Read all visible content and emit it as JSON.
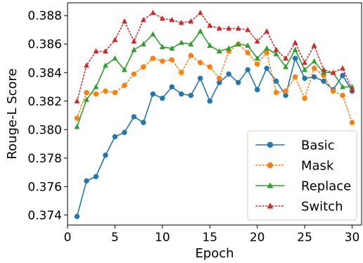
{
  "chart_data": {
    "type": "line",
    "title": "",
    "xlabel": "Epoch",
    "ylabel": "Rouge-L Score",
    "xlim": [
      0,
      31
    ],
    "ylim": [
      0.3733,
      0.3889
    ],
    "xticks": [
      0,
      5,
      10,
      15,
      20,
      25,
      30
    ],
    "yticks": [
      0.374,
      0.376,
      0.378,
      0.38,
      0.382,
      0.384,
      0.386,
      0.388
    ],
    "ytick_labels": [
      "0.374",
      "0.376",
      "0.378",
      "0.380",
      "0.382",
      "0.384",
      "0.386",
      "0.388"
    ],
    "grid": false,
    "legend_position": "lower-right",
    "x": [
      1,
      2,
      3,
      4,
      5,
      6,
      7,
      8,
      9,
      10,
      11,
      12,
      13,
      14,
      15,
      16,
      17,
      18,
      19,
      20,
      21,
      22,
      23,
      24,
      25,
      26,
      27,
      28,
      29,
      30
    ],
    "series": [
      {
        "name": "Basic",
        "color": "#1f77b4",
        "line_style": "solid",
        "marker": "circle",
        "values": [
          0.3739,
          0.3764,
          0.3767,
          0.3782,
          0.3795,
          0.3798,
          0.3809,
          0.3805,
          0.3825,
          0.3822,
          0.383,
          0.3825,
          0.3824,
          0.3836,
          0.382,
          0.3833,
          0.3839,
          0.3833,
          0.3842,
          0.3828,
          0.3843,
          0.3834,
          0.3824,
          0.385,
          0.3836,
          0.3837,
          0.3834,
          0.3828,
          0.3838,
          0.3827
        ]
      },
      {
        "name": "Mask",
        "color": "#ff7f0e",
        "line_style": "dotted",
        "marker": "circle",
        "values": [
          0.3808,
          0.3826,
          0.3825,
          0.3827,
          0.3826,
          0.3831,
          0.3839,
          0.3844,
          0.385,
          0.3848,
          0.3849,
          0.384,
          0.3852,
          0.3847,
          0.3844,
          0.3836,
          0.3855,
          0.386,
          0.3854,
          0.3846,
          0.3854,
          0.3826,
          0.3827,
          0.3837,
          0.3822,
          0.3843,
          0.3838,
          0.3827,
          0.3824,
          0.3805
        ]
      },
      {
        "name": "Replace",
        "color": "#2ca02c",
        "line_style": "solid",
        "marker": "triangle",
        "values": [
          0.3802,
          0.3821,
          0.383,
          0.3845,
          0.385,
          0.3842,
          0.3856,
          0.386,
          0.3867,
          0.3858,
          0.3857,
          0.3861,
          0.386,
          0.3869,
          0.3859,
          0.3855,
          0.3857,
          0.386,
          0.3859,
          0.385,
          0.3857,
          0.3853,
          0.3844,
          0.3856,
          0.3842,
          0.3848,
          0.384,
          0.384,
          0.383,
          0.383
        ]
      },
      {
        "name": "Switch",
        "color": "#d62728",
        "line_style": "dotted",
        "marker": "triangle",
        "values": [
          0.382,
          0.3845,
          0.3855,
          0.3855,
          0.3863,
          0.3876,
          0.3862,
          0.3877,
          0.3882,
          0.3878,
          0.3877,
          0.3875,
          0.3876,
          0.3882,
          0.3873,
          0.3871,
          0.3871,
          0.3871,
          0.387,
          0.3862,
          0.3869,
          0.3856,
          0.385,
          0.3861,
          0.3847,
          0.3859,
          0.3842,
          0.384,
          0.3843,
          0.3828
        ]
      }
    ]
  }
}
